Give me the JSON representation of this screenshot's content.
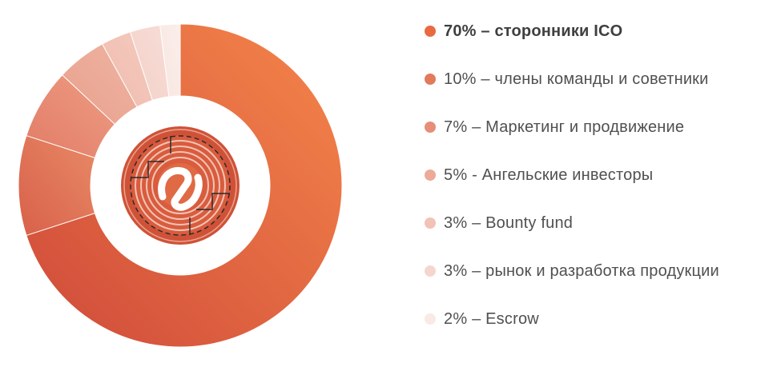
{
  "chart_data": {
    "type": "pie",
    "variant": "donut",
    "title": "",
    "slices": [
      {
        "label": "70% – сторонники ICO",
        "value": 70,
        "color": "#ea6a40",
        "gradient": [
          "#cf4a3a",
          "#f5864a"
        ],
        "bold": true
      },
      {
        "label": "10% – члены команды и советники",
        "value": 10,
        "color": "#e27a5c",
        "gradient": [
          "#d8604a",
          "#e88a66"
        ],
        "bold": false
      },
      {
        "label": "7% – Маркетинг и продвижение",
        "value": 7,
        "color": "#e68e78",
        "gradient": [
          "#e27c66",
          "#ee9c84"
        ],
        "bold": false
      },
      {
        "label": "5% - Ангельские инвесторы",
        "value": 5,
        "color": "#ecaa98",
        "gradient": [
          "#e7a08c",
          "#efb4a2"
        ],
        "bold": false
      },
      {
        "label": "3% – Bounty fund",
        "value": 3,
        "color": "#f2c2b6",
        "gradient": [
          "#efbcae",
          "#f4cabe"
        ],
        "bold": false
      },
      {
        "label": "3% – рынок и разработка продукции",
        "value": 3,
        "color": "#f5d6cf",
        "gradient": [
          "#f4d2ca",
          "#f7dcd6"
        ],
        "bold": false
      },
      {
        "label": "2% – Escrow",
        "value": 2,
        "color": "#f9eae6",
        "gradient": [
          "#f8e6e1",
          "#fbeeeb"
        ],
        "bold": false
      }
    ],
    "legend_position": "right",
    "center_logo": "crypto-coin-logo",
    "colors": {
      "logo_outer": "#d0533a",
      "logo_inner": "#e06a44",
      "logo_lines": "#f3c4b4",
      "logo_mark": "#ffffff",
      "logo_circuit": "#2b2b2b"
    }
  }
}
